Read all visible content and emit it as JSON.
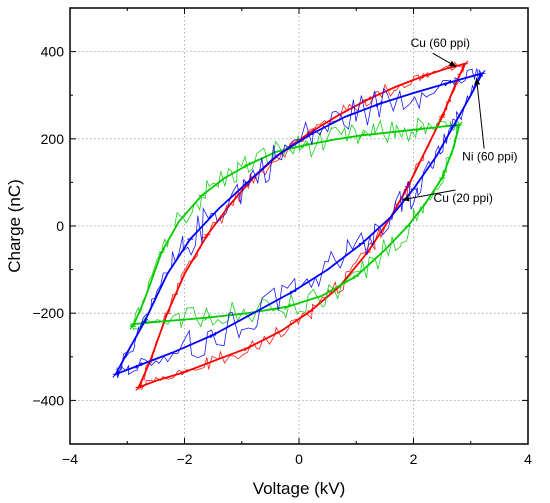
{
  "chart_data": {
    "type": "line",
    "title": "",
    "xlabel": "Voltage (kV)",
    "ylabel": "Charge (nC)",
    "xlim": [
      -4,
      4
    ],
    "ylim": [
      -500,
      500
    ],
    "xticks": [
      -4,
      -2,
      0,
      2,
      4
    ],
    "xtick_labels": [
      "−4",
      "−2",
      "0",
      "2",
      "4"
    ],
    "yticks": [
      -400,
      -200,
      0,
      200,
      400
    ],
    "ytick_labels": [
      "−400",
      "−200",
      "0",
      "200",
      "400"
    ],
    "grid": true,
    "legend": "none",
    "series": [
      {
        "color": "#ff0000",
        "noise": 18,
        "upper": [
          [
            -2.8,
            -370
          ],
          [
            -2.6,
            -310
          ],
          [
            -2.3,
            -200
          ],
          [
            -2.0,
            -110
          ],
          [
            -1.6,
            -20
          ],
          [
            -1.2,
            50
          ],
          [
            -0.8,
            110
          ],
          [
            -0.3,
            170
          ],
          [
            0.2,
            215
          ],
          [
            0.7,
            255
          ],
          [
            1.2,
            290
          ],
          [
            1.7,
            320
          ],
          [
            2.2,
            345
          ],
          [
            2.6,
            362
          ],
          [
            2.9,
            372
          ]
        ],
        "lower": [
          [
            2.9,
            372
          ],
          [
            2.75,
            330
          ],
          [
            2.5,
            250
          ],
          [
            2.2,
            170
          ],
          [
            1.9,
            90
          ],
          [
            1.6,
            20
          ],
          [
            1.2,
            -60
          ],
          [
            0.7,
            -140
          ],
          [
            0.2,
            -195
          ],
          [
            -0.3,
            -240
          ],
          [
            -0.9,
            -280
          ],
          [
            -1.5,
            -310
          ],
          [
            -2.0,
            -335
          ],
          [
            -2.5,
            -355
          ],
          [
            -2.8,
            -370
          ]
        ]
      },
      {
        "color": "#00cc00",
        "noise": 30,
        "upper": [
          [
            -2.9,
            -230
          ],
          [
            -2.7,
            -170
          ],
          [
            -2.4,
            -60
          ],
          [
            -2.1,
            10
          ],
          [
            -1.7,
            70
          ],
          [
            -1.3,
            110
          ],
          [
            -0.9,
            140
          ],
          [
            -0.4,
            170
          ],
          [
            0.1,
            185
          ],
          [
            0.6,
            198
          ],
          [
            1.1,
            208
          ],
          [
            1.6,
            215
          ],
          [
            2.1,
            222
          ],
          [
            2.5,
            228
          ],
          [
            2.8,
            232
          ]
        ],
        "lower": [
          [
            2.8,
            232
          ],
          [
            2.7,
            180
          ],
          [
            2.5,
            110
          ],
          [
            2.2,
            50
          ],
          [
            1.9,
            0
          ],
          [
            1.5,
            -55
          ],
          [
            1.0,
            -115
          ],
          [
            0.4,
            -160
          ],
          [
            -0.2,
            -185
          ],
          [
            -0.9,
            -200
          ],
          [
            -1.6,
            -210
          ],
          [
            -2.3,
            -218
          ],
          [
            -2.9,
            -225
          ]
        ]
      },
      {
        "color": "#0000ff",
        "noise": 40,
        "upper": [
          [
            -3.2,
            -340
          ],
          [
            -3.0,
            -290
          ],
          [
            -2.7,
            -220
          ],
          [
            -2.3,
            -110
          ],
          [
            -1.9,
            -30
          ],
          [
            -1.4,
            40
          ],
          [
            -0.9,
            100
          ],
          [
            -0.4,
            160
          ],
          [
            0.2,
            210
          ],
          [
            0.8,
            250
          ],
          [
            1.4,
            280
          ],
          [
            2.0,
            305
          ],
          [
            2.6,
            328
          ],
          [
            3.0,
            343
          ],
          [
            3.2,
            350
          ]
        ],
        "lower": [
          [
            3.2,
            350
          ],
          [
            3.0,
            300
          ],
          [
            2.7,
            230
          ],
          [
            2.4,
            160
          ],
          [
            2.0,
            85
          ],
          [
            1.6,
            20
          ],
          [
            1.1,
            -40
          ],
          [
            0.5,
            -100
          ],
          [
            -0.1,
            -150
          ],
          [
            -0.8,
            -200
          ],
          [
            -1.5,
            -250
          ],
          [
            -2.2,
            -290
          ],
          [
            -2.8,
            -320
          ],
          [
            -3.2,
            -340
          ]
        ]
      }
    ],
    "annotations": [
      {
        "text": "Cu (60 ppi)",
        "x": 1.95,
        "y": 410,
        "tip_x": 2.75,
        "tip_y": 365,
        "label_anchor": "start"
      },
      {
        "text": "Ni (60 ppi)",
        "x": 2.85,
        "y": 150,
        "tip_x": 3.1,
        "tip_y": 340,
        "label_anchor": "start"
      },
      {
        "text": "Cu (20 ppi)",
        "x": 2.35,
        "y": 55,
        "tip_x": 1.8,
        "tip_y": 60,
        "label_anchor": "start"
      }
    ]
  }
}
